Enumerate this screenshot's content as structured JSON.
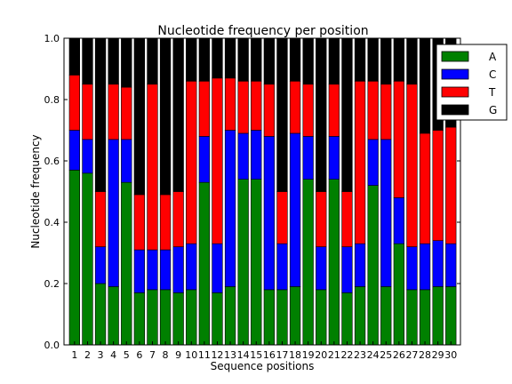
{
  "chart_data": {
    "type": "bar",
    "stacked": true,
    "title": "Nucleotide frequency per position",
    "xlabel": "Sequence positions",
    "ylabel": "Nucleotide frequency",
    "ylim": [
      0,
      1.0
    ],
    "yticks": [
      "0.0",
      "0.2",
      "0.4",
      "0.6",
      "0.8",
      "1.0"
    ],
    "grid": false,
    "legend_position": "outside top-right",
    "categories": [
      "1",
      "2",
      "3",
      "4",
      "5",
      "6",
      "7",
      "8",
      "9",
      "10",
      "11",
      "12",
      "13",
      "14",
      "15",
      "16",
      "17",
      "18",
      "19",
      "20",
      "21",
      "22",
      "23",
      "24",
      "25",
      "26",
      "27",
      "28",
      "29",
      "30"
    ],
    "series": [
      {
        "name": "A",
        "color": "#008000",
        "values": [
          0.57,
          0.56,
          0.2,
          0.19,
          0.53,
          0.17,
          0.18,
          0.18,
          0.17,
          0.18,
          0.53,
          0.17,
          0.19,
          0.54,
          0.54,
          0.18,
          0.18,
          0.19,
          0.54,
          0.18,
          0.54,
          0.17,
          0.19,
          0.52,
          0.19,
          0.33,
          0.18,
          0.18,
          0.19,
          0.19
        ]
      },
      {
        "name": "C",
        "color": "#0000ff",
        "values": [
          0.13,
          0.11,
          0.12,
          0.48,
          0.14,
          0.14,
          0.13,
          0.13,
          0.15,
          0.15,
          0.15,
          0.16,
          0.51,
          0.15,
          0.16,
          0.5,
          0.15,
          0.5,
          0.14,
          0.14,
          0.14,
          0.15,
          0.14,
          0.15,
          0.48,
          0.15,
          0.14,
          0.15,
          0.15,
          0.14
        ]
      },
      {
        "name": "T",
        "color": "#ff0000",
        "values": [
          0.18,
          0.18,
          0.18,
          0.18,
          0.17,
          0.18,
          0.54,
          0.18,
          0.18,
          0.53,
          0.18,
          0.54,
          0.17,
          0.17,
          0.16,
          0.17,
          0.17,
          0.17,
          0.17,
          0.18,
          0.17,
          0.18,
          0.53,
          0.19,
          0.18,
          0.38,
          0.53,
          0.36,
          0.36,
          0.38
        ]
      },
      {
        "name": "G",
        "color": "#000000",
        "values": [
          0.12,
          0.15,
          0.5,
          0.15,
          0.16,
          0.51,
          0.15,
          0.51,
          0.5,
          0.14,
          0.14,
          0.13,
          0.13,
          0.14,
          0.14,
          0.15,
          0.5,
          0.14,
          0.15,
          0.5,
          0.15,
          0.5,
          0.14,
          0.14,
          0.15,
          0.14,
          0.15,
          0.31,
          0.3,
          0.29
        ]
      }
    ]
  }
}
